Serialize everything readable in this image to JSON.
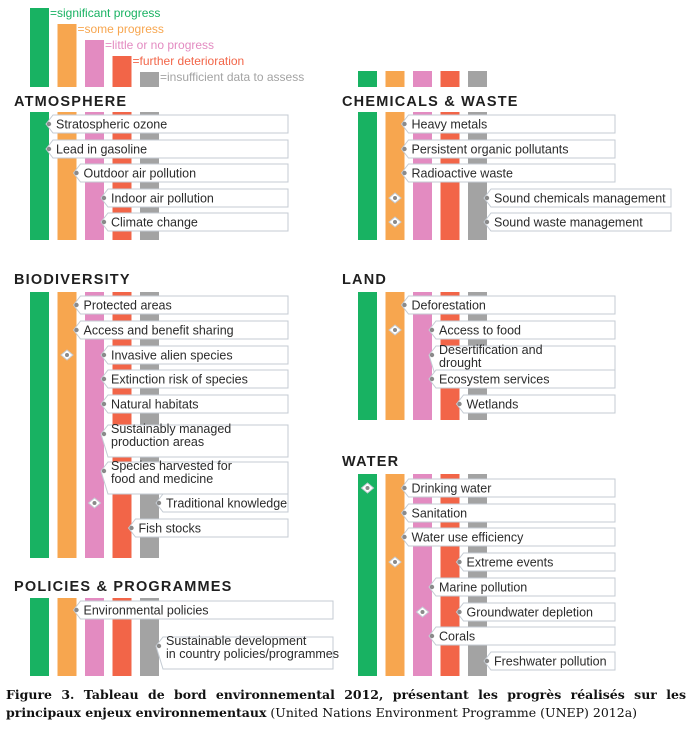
{
  "legend": [
    {
      "label": "=significant progress",
      "color": "#18b262"
    },
    {
      "label": "=some progress",
      "color": "#f7a64f"
    },
    {
      "label": "=little or no progress",
      "color": "#e38bc1"
    },
    {
      "label": "=further deterioration",
      "color": "#f26548"
    },
    {
      "label": "=insufficient data to assess",
      "color": "#a3a3a3"
    }
  ],
  "panels": [
    {
      "title": "ATMOSPHERE",
      "items": [
        {
          "label": "Stratospheric ozone",
          "level": 0
        },
        {
          "label": "Lead in gasoline",
          "level": 0
        },
        {
          "label": "Outdoor air pollution",
          "level": 1
        },
        {
          "label": "Indoor air pollution",
          "level": 2
        },
        {
          "label": "Climate change",
          "level": 2
        }
      ]
    },
    {
      "title": "BIODIVERSITY",
      "items": [
        {
          "label": "Protected areas",
          "level": 1
        },
        {
          "label": "Access and benefit sharing",
          "level": 1
        },
        {
          "label": "Invasive alien species",
          "level": 2,
          "span": [
            1,
            2
          ]
        },
        {
          "label": "Extinction risk of species",
          "level": 2
        },
        {
          "label": "Natural habitats",
          "level": 2
        },
        {
          "label": "Sustainably managed production areas",
          "level": 2
        },
        {
          "label": "Species harvested for food and medicine",
          "level": 2
        },
        {
          "label": "Traditional knowledge",
          "level": 4,
          "span": [
            2,
            4
          ]
        },
        {
          "label": "Fish stocks",
          "level": 3
        }
      ]
    },
    {
      "title": "POLICIES & PROGRAMMES",
      "items": [
        {
          "label": "Environmental policies",
          "level": 1
        },
        {
          "label": "Sustainable development in country policies/programmes",
          "level": 4
        }
      ]
    },
    {
      "title": "CHEMICALS & WASTE",
      "items": [
        {
          "label": "Heavy metals",
          "level": 1
        },
        {
          "label": "Persistent organic pollutants",
          "level": 1
        },
        {
          "label": "Radioactive waste",
          "level": 1
        },
        {
          "label": "Sound chemicals management",
          "level": 4,
          "span": [
            1,
            4
          ]
        },
        {
          "label": "Sound waste management",
          "level": 4,
          "span": [
            1,
            4
          ]
        }
      ]
    },
    {
      "title": "LAND",
      "items": [
        {
          "label": "Deforestation",
          "level": 1
        },
        {
          "label": "Access to food",
          "level": 2,
          "span": [
            1,
            2
          ]
        },
        {
          "label": "Desertification and drought",
          "level": 2
        },
        {
          "label": "Ecosystem services",
          "level": 2
        },
        {
          "label": "Wetlands",
          "level": 3
        }
      ]
    },
    {
      "title": "WATER",
      "items": [
        {
          "label": "Drinking water",
          "level": 1,
          "span": [
            0,
            1
          ]
        },
        {
          "label": "Sanitation",
          "level": 1
        },
        {
          "label": "Water use efficiency",
          "level": 1
        },
        {
          "label": "Extreme events",
          "level": 3,
          "span": [
            1,
            3
          ]
        },
        {
          "label": "Marine pollution",
          "level": 2
        },
        {
          "label": "Groundwater depletion",
          "level": 3,
          "span": [
            2,
            3
          ]
        },
        {
          "label": "Corals",
          "level": 2
        },
        {
          "label": "Freshwater pollution",
          "level": 4
        }
      ]
    }
  ],
  "caption": {
    "bold": "Figure 3. Tableau de bord environnemental 2012, présentant les progrès réalisés sur les principaux enjeux environnementaux",
    "normal": " (United Nations Environment Programme (UNEP) 2012a)"
  }
}
